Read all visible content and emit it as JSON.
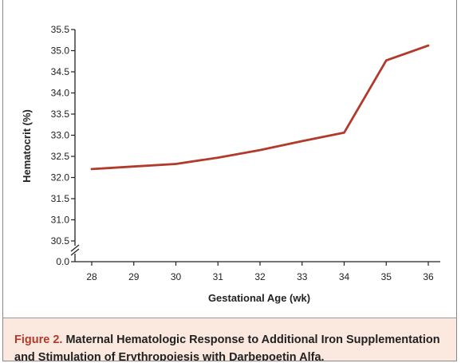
{
  "chart_data": {
    "type": "line",
    "title": "",
    "xlabel": "Gestational Age (wk)",
    "ylabel": "Hematocrit (%)",
    "xlim": [
      27.7,
      36.3
    ],
    "ylim": [
      30.0,
      35.5
    ],
    "x_ticks": [
      28,
      29,
      30,
      31,
      32,
      33,
      34,
      35,
      36
    ],
    "y_ticks": [
      0.0,
      30.5,
      31.0,
      31.5,
      32.0,
      32.5,
      33.0,
      33.5,
      34.0,
      34.5,
      35.0,
      35.5
    ],
    "y_axis_break": true,
    "grid": false,
    "series": [
      {
        "x": [
          28,
          29,
          30,
          31,
          32,
          33,
          34,
          35,
          36
        ],
        "values": [
          32.2,
          32.26,
          32.32,
          32.47,
          32.65,
          32.86,
          33.06,
          34.77,
          35.12
        ],
        "color": "#b23a2b"
      }
    ]
  },
  "caption": {
    "label": "Figure 2.",
    "line1": "Maternal Hematologic Response to Additional Iron Supplementation",
    "line2": "and Stimulation of Erythropoiesis with Darbepoetin Alfa."
  },
  "colors": {
    "line": "#b23a2b",
    "caption_background": "#fbe8df",
    "caption_label": "#b23a2b"
  }
}
